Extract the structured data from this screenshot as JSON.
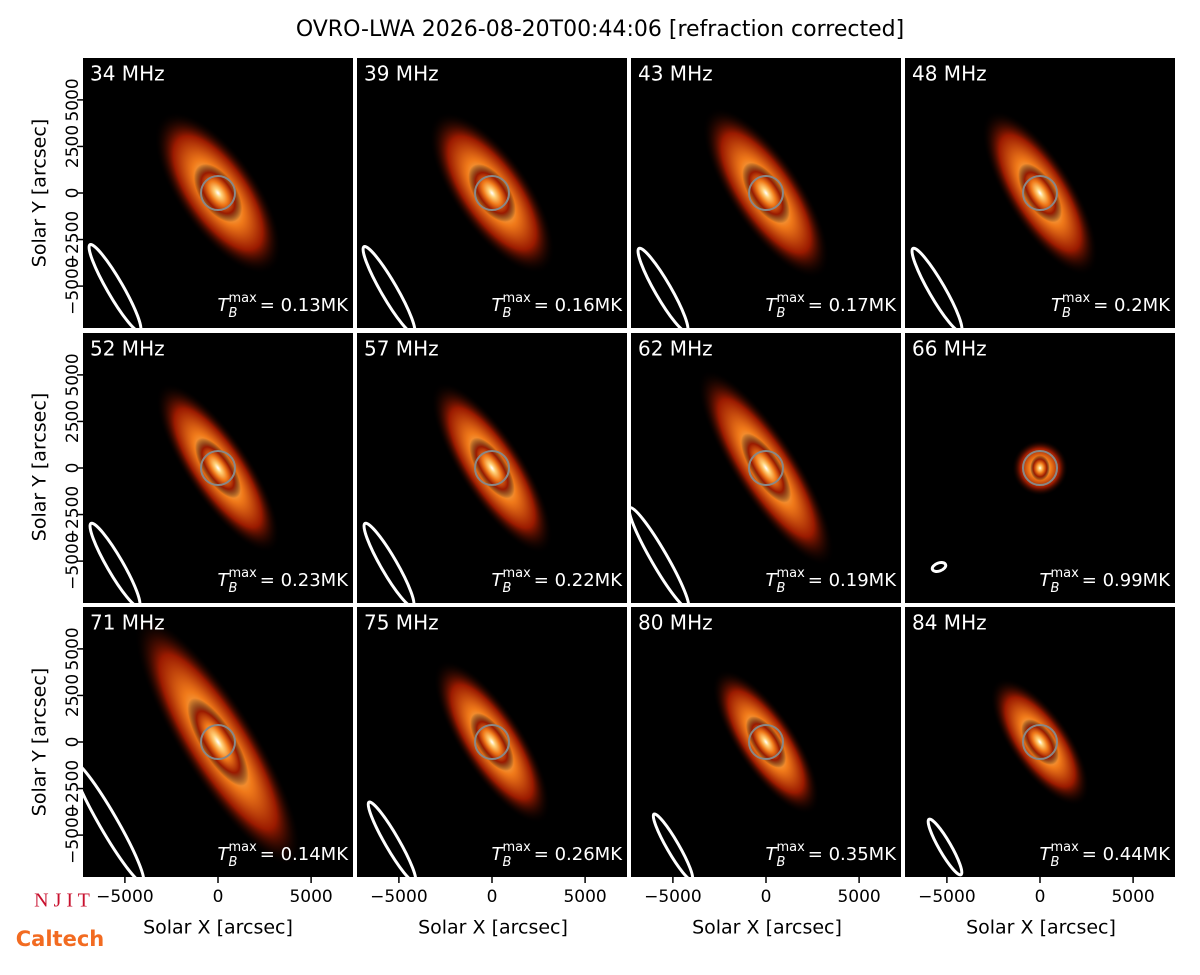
{
  "chart_data": {
    "type": "image-grid",
    "title": "OVRO-LWA 2026-08-20T00:44:06 [refraction corrected]",
    "xlabel": "Solar X [arcsec]",
    "ylabel": "Solar Y [arcsec]",
    "xlim": [
      -7250,
      7250
    ],
    "ylim": [
      -7250,
      7250
    ],
    "xticks": [
      {
        "value": -5000,
        "label": "−5000"
      },
      0,
      5000
    ],
    "yticks": [
      {
        "value": -5000,
        "label": "−5000"
      },
      {
        "value": -2500,
        "label": "−2500"
      },
      0,
      2500,
      5000
    ],
    "panels": [
      {
        "label": "34 MHz",
        "tb_symbol": "T",
        "tb_sub": "B",
        "tb_sup": "max",
        "tb_text": "= 0.13MK"
      },
      {
        "label": "39 MHz",
        "tb_symbol": "T",
        "tb_sub": "B",
        "tb_sup": "max",
        "tb_text": "= 0.16MK"
      },
      {
        "label": "43 MHz",
        "tb_symbol": "T",
        "tb_sub": "B",
        "tb_sup": "max",
        "tb_text": "= 0.17MK"
      },
      {
        "label": "48 MHz",
        "tb_symbol": "T",
        "tb_sub": "B",
        "tb_sup": "max",
        "tb_text": "= 0.2MK"
      },
      {
        "label": "52 MHz",
        "tb_symbol": "T",
        "tb_sub": "B",
        "tb_sup": "max",
        "tb_text": "= 0.23MK"
      },
      {
        "label": "57 MHz",
        "tb_symbol": "T",
        "tb_sub": "B",
        "tb_sup": "max",
        "tb_text": "= 0.22MK"
      },
      {
        "label": "62 MHz",
        "tb_symbol": "T",
        "tb_sub": "B",
        "tb_sup": "max",
        "tb_text": "= 0.19MK"
      },
      {
        "label": "66 MHz",
        "tb_symbol": "T",
        "tb_sub": "B",
        "tb_sup": "max",
        "tb_text": "= 0.99MK"
      },
      {
        "label": "71 MHz",
        "tb_symbol": "T",
        "tb_sub": "B",
        "tb_sup": "max",
        "tb_text": "= 0.14MK"
      },
      {
        "label": "75 MHz",
        "tb_symbol": "T",
        "tb_sub": "B",
        "tb_sup": "max",
        "tb_text": "= 0.26MK"
      },
      {
        "label": "80 MHz",
        "tb_symbol": "T",
        "tb_sub": "B",
        "tb_sup": "max",
        "tb_text": "= 0.35MK"
      },
      {
        "label": "84 MHz",
        "tb_symbol": "T",
        "tb_sub": "B",
        "tb_sup": "max",
        "tb_text": "= 0.44MK"
      }
    ]
  },
  "logos": [
    "N J I T",
    "Caltech"
  ]
}
